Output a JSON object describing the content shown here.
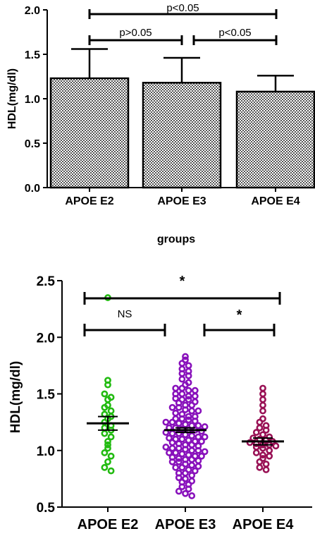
{
  "chart_data": [
    {
      "type": "bar",
      "ylabel": "HDL(mg/dl)",
      "xlabel": "groups",
      "ylim": [
        0,
        2
      ],
      "yticks": [
        "0.0",
        "0.5",
        "1.0",
        "1.5",
        "2.0"
      ],
      "categories": [
        "APOE E2",
        "APOE E3",
        "APOE E4"
      ],
      "values": [
        1.23,
        1.18,
        1.08
      ],
      "errors": [
        0.33,
        0.28,
        0.18
      ],
      "fill": "checkered grey",
      "comparisons": [
        {
          "from": 0,
          "to": 2,
          "label": "p<0.05"
        },
        {
          "from": 0,
          "to": 1,
          "label": "p>0.05"
        },
        {
          "from": 1,
          "to": 2,
          "label": "p<0.05"
        }
      ]
    },
    {
      "type": "scatter",
      "ylabel": "HDL(mg/dl)",
      "ylim": [
        0.5,
        2.5
      ],
      "yticks": [
        "0.5",
        "1.0",
        "1.5",
        "2.0",
        "2.5"
      ],
      "categories": [
        "APOE E2",
        "APOE E3",
        "APOE E4"
      ],
      "colors": [
        "#22bb11",
        "#8811bb",
        "#991155"
      ],
      "means": [
        1.24,
        1.18,
        1.08
      ],
      "sems": [
        0.06,
        0.02,
        0.03
      ],
      "series": [
        {
          "values": [
            2.35,
            1.62,
            1.58,
            1.5,
            1.47,
            1.45,
            1.4,
            1.38,
            1.35,
            1.32,
            1.3,
            1.28,
            1.25,
            1.22,
            1.2,
            1.18,
            1.15,
            1.12,
            1.08,
            1.05,
            1.02,
            0.98,
            0.95,
            0.9,
            0.85,
            0.82
          ]
        },
        {
          "values": [
            1.83,
            1.8,
            1.77,
            1.75,
            1.72,
            1.7,
            1.68,
            1.66,
            1.63,
            1.6,
            1.58,
            1.55,
            1.55,
            1.53,
            1.53,
            1.5,
            1.5,
            1.48,
            1.48,
            1.46,
            1.45,
            1.45,
            1.43,
            1.42,
            1.4,
            1.4,
            1.38,
            1.38,
            1.36,
            1.35,
            1.35,
            1.33,
            1.32,
            1.3,
            1.3,
            1.28,
            1.28,
            1.27,
            1.26,
            1.25,
            1.25,
            1.24,
            1.23,
            1.22,
            1.22,
            1.21,
            1.2,
            1.2,
            1.19,
            1.18,
            1.18,
            1.17,
            1.16,
            1.15,
            1.15,
            1.14,
            1.13,
            1.12,
            1.12,
            1.11,
            1.1,
            1.1,
            1.09,
            1.08,
            1.08,
            1.07,
            1.06,
            1.05,
            1.05,
            1.04,
            1.03,
            1.02,
            1.02,
            1.01,
            1.0,
            1.0,
            0.99,
            0.98,
            0.98,
            0.97,
            0.96,
            0.95,
            0.95,
            0.94,
            0.93,
            0.92,
            0.92,
            0.91,
            0.9,
            0.9,
            0.88,
            0.87,
            0.86,
            0.85,
            0.85,
            0.83,
            0.82,
            0.8,
            0.8,
            0.78,
            0.76,
            0.75,
            0.73,
            0.72,
            0.7,
            0.68,
            0.66,
            0.64,
            0.62,
            0.6
          ]
        },
        {
          "values": [
            1.55,
            1.5,
            1.45,
            1.4,
            1.35,
            1.28,
            1.25,
            1.22,
            1.2,
            1.18,
            1.16,
            1.14,
            1.12,
            1.11,
            1.1,
            1.09,
            1.08,
            1.07,
            1.06,
            1.05,
            1.05,
            1.04,
            1.03,
            1.02,
            1.0,
            0.98,
            0.96,
            0.95,
            0.93,
            0.9,
            0.88,
            0.85,
            0.83
          ]
        }
      ],
      "comparisons": [
        {
          "from": 0,
          "to": 2,
          "label": "*"
        },
        {
          "from": 0,
          "to": 1,
          "label": "NS"
        },
        {
          "from": 1,
          "to": 2,
          "label": "*"
        }
      ]
    }
  ]
}
